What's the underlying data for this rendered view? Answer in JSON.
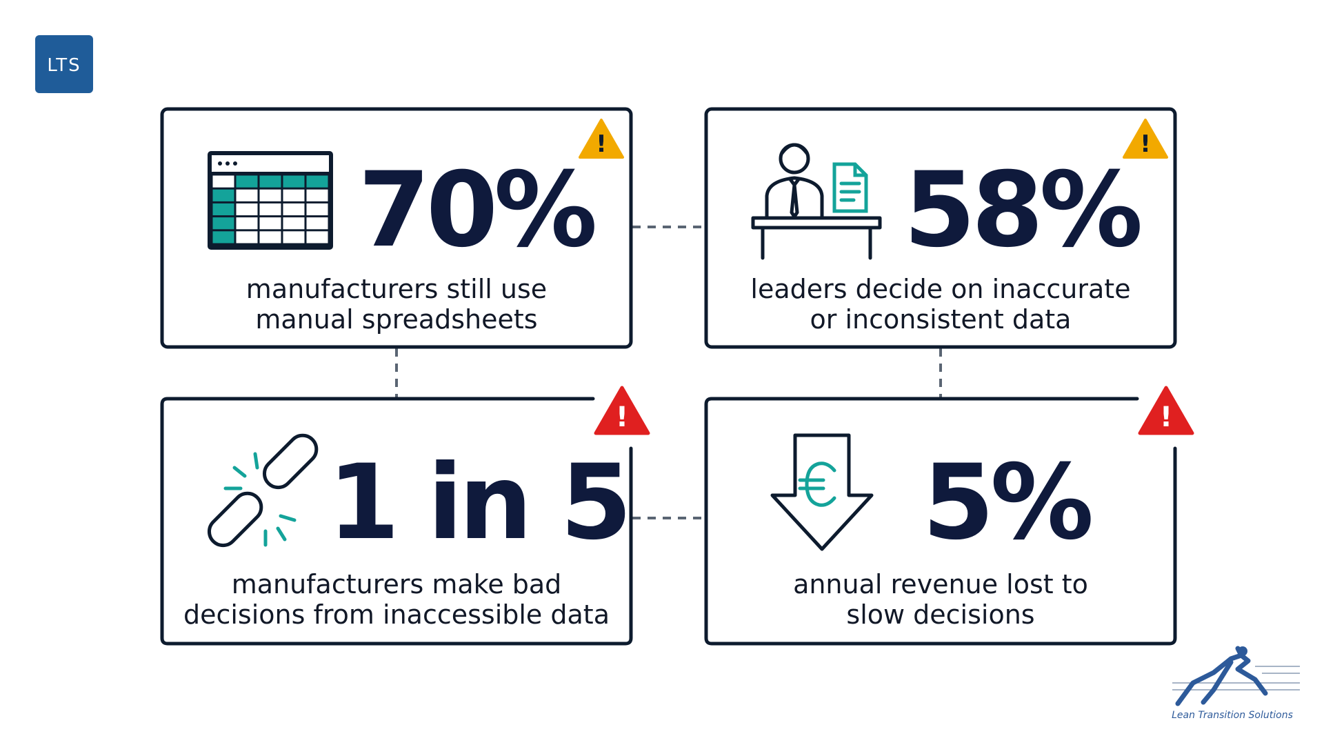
{
  "logo": "LTS",
  "cards": [
    {
      "stat": "70%",
      "description": [
        "manufacturers still use",
        "manual spreadsheets"
      ]
    },
    {
      "stat": "58%",
      "description": [
        "leaders decide on inaccurate",
        "or inconsistent data"
      ]
    },
    {
      "stat": "1 in 5",
      "description": [
        "manufacturers make bad",
        "decisions from inaccessible data"
      ]
    },
    {
      "stat": "5%",
      "description": [
        "annual revenue lost to",
        "slow decisions"
      ]
    }
  ],
  "footer": {
    "brand": "Lean Transition Solutions"
  }
}
